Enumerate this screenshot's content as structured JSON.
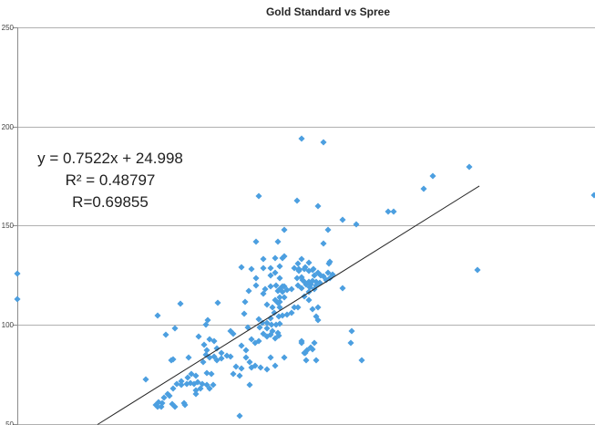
{
  "title": "Gold Standard vs Spree",
  "annotation": {
    "equation": "y = 0.7522x + 24.998",
    "r_squared": "R² = 0.48797",
    "r": "R=0.69855"
  },
  "y_axis": {
    "ticks": [
      "250",
      "200",
      "150",
      "100",
      "50"
    ],
    "tick_values": [
      250,
      200,
      150,
      100,
      50
    ]
  },
  "colors": {
    "point": "#4c9fe0",
    "trendline": "#262626",
    "gridline": "#b0b0b0",
    "axis": "#8c8c8c",
    "title_text": "#262626",
    "annotation_text": "#1f1f1f",
    "tick_text": "#3f3f3f"
  },
  "chart_data": {
    "type": "scatter",
    "title": "Gold Standard vs Spree",
    "xlabel": "",
    "ylabel": "",
    "grid": "horizontal-only",
    "xlim": [
      0,
      240
    ],
    "ylim_visible": [
      50,
      250
    ],
    "gridlines_y": [
      250,
      200,
      150,
      100,
      50
    ],
    "x_axis_note": "no x tick labels visible in screenshot; x values inferred from trendline calibration",
    "trendline": {
      "equation": "y = 0.7522x + 24.998",
      "r_squared": 0.48797,
      "r": 0.69855,
      "x1": 33.9,
      "y1": 49.9,
      "x2": 193.4,
      "y2": 170.3
    },
    "marker": "diamond",
    "points": [
      [
        0.4,
        126
      ],
      [
        0.4,
        113
      ],
      [
        119,
        194
      ],
      [
        128,
        192
      ],
      [
        189,
        179.5
      ],
      [
        174,
        175
      ],
      [
        170,
        168.5
      ],
      [
        101,
        165
      ],
      [
        117,
        162.5
      ],
      [
        126,
        160
      ],
      [
        155,
        157
      ],
      [
        157.5,
        157
      ],
      [
        136,
        153
      ],
      [
        142,
        150.5
      ],
      [
        112,
        148
      ],
      [
        100,
        142
      ],
      [
        109,
        142
      ],
      [
        103,
        133
      ],
      [
        108,
        133.5
      ],
      [
        112,
        134.5
      ],
      [
        98,
        128
      ],
      [
        103,
        128.5
      ],
      [
        106,
        128.5
      ],
      [
        110,
        129.5
      ],
      [
        116,
        128.5
      ],
      [
        118,
        127.5
      ],
      [
        94,
        129
      ],
      [
        117.5,
        131
      ],
      [
        108,
        126.5
      ],
      [
        130,
        126.5
      ],
      [
        126,
        126.5
      ],
      [
        124,
        128
      ],
      [
        120.5,
        129
      ],
      [
        122,
        131.5
      ],
      [
        119,
        133
      ],
      [
        128,
        141
      ],
      [
        130,
        148
      ],
      [
        106,
        125
      ],
      [
        100,
        123.5
      ],
      [
        110,
        123.5
      ],
      [
        118,
        128
      ],
      [
        192.5,
        127.5
      ],
      [
        111,
        133.5
      ],
      [
        111,
        119.5
      ],
      [
        112,
        119.5
      ],
      [
        109,
        117
      ],
      [
        111,
        116.5
      ],
      [
        113,
        117.5
      ],
      [
        110,
        114
      ],
      [
        112,
        114
      ],
      [
        108,
        112.5
      ],
      [
        110,
        111.5
      ],
      [
        115,
        118
      ],
      [
        117.5,
        120
      ],
      [
        119,
        124
      ],
      [
        118,
        127
      ],
      [
        120,
        128
      ],
      [
        122,
        127
      ],
      [
        123.5,
        127.5
      ],
      [
        124.5,
        125
      ],
      [
        127,
        125
      ],
      [
        120,
        121.5
      ],
      [
        121,
        120.5
      ],
      [
        123.5,
        122
      ],
      [
        125,
        120
      ],
      [
        126.5,
        121
      ],
      [
        122,
        116.5
      ],
      [
        120,
        114.5
      ],
      [
        117,
        123.5
      ],
      [
        119.5,
        122.5
      ],
      [
        122,
        121.5
      ],
      [
        123,
        120.5
      ],
      [
        125,
        121.5
      ],
      [
        122.5,
        119
      ],
      [
        124.5,
        118
      ],
      [
        119,
        118.5
      ],
      [
        128,
        124.5
      ],
      [
        129.5,
        122.5
      ],
      [
        131,
        123.5
      ],
      [
        132,
        125.5
      ],
      [
        136,
        118.5
      ],
      [
        130.5,
        131
      ],
      [
        131,
        132
      ],
      [
        97,
        117
      ],
      [
        100,
        120
      ],
      [
        103,
        115.5
      ],
      [
        104,
        118
      ],
      [
        106,
        119.5
      ],
      [
        108.5,
        120
      ],
      [
        110,
        118
      ],
      [
        59,
        104.5
      ],
      [
        68.5,
        110.5
      ],
      [
        84,
        111
      ],
      [
        80,
        102.5
      ],
      [
        79,
        100
      ],
      [
        95,
        105.5
      ],
      [
        95.5,
        111.5
      ],
      [
        104.5,
        110
      ],
      [
        107,
        109
      ],
      [
        109,
        111
      ],
      [
        110,
        109
      ],
      [
        107.5,
        106
      ],
      [
        106,
        103.5
      ],
      [
        109.5,
        104
      ],
      [
        111,
        104.5
      ],
      [
        104.5,
        101
      ],
      [
        106.5,
        100
      ],
      [
        108.5,
        100
      ],
      [
        110,
        100.5
      ],
      [
        101.5,
        98.5
      ],
      [
        102.5,
        101
      ],
      [
        101,
        103
      ],
      [
        116,
        109
      ],
      [
        117.5,
        109
      ],
      [
        115,
        106
      ],
      [
        113,
        105
      ],
      [
        123.5,
        108
      ],
      [
        126,
        109
      ],
      [
        125,
        104
      ],
      [
        126,
        102.5
      ],
      [
        122,
        112.5
      ],
      [
        140,
        97
      ],
      [
        62.5,
        95
      ],
      [
        66,
        98
      ],
      [
        76,
        94
      ],
      [
        80.5,
        92.5
      ],
      [
        82.5,
        92
      ],
      [
        78.5,
        90
      ],
      [
        79.5,
        87
      ],
      [
        83.5,
        88
      ],
      [
        85.5,
        86
      ],
      [
        89.5,
        97
      ],
      [
        90.5,
        95.5
      ],
      [
        96.5,
        98.5
      ],
      [
        98,
        92.5
      ],
      [
        99.5,
        91
      ],
      [
        101,
        92
      ],
      [
        94,
        89.5
      ],
      [
        96,
        87
      ],
      [
        103,
        95.5
      ],
      [
        104.5,
        94
      ],
      [
        106,
        95
      ],
      [
        108,
        93
      ],
      [
        109.5,
        94.5
      ],
      [
        107,
        97
      ],
      [
        104.5,
        98
      ],
      [
        109,
        96
      ],
      [
        119,
        92
      ],
      [
        124.5,
        91
      ],
      [
        123.5,
        87.5
      ],
      [
        120.5,
        86
      ],
      [
        119,
        91
      ],
      [
        123,
        88.5
      ],
      [
        121,
        82
      ],
      [
        125,
        82
      ],
      [
        144,
        82
      ],
      [
        139.5,
        91
      ],
      [
        112,
        83.5
      ],
      [
        120,
        86
      ],
      [
        121.5,
        87
      ],
      [
        65.5,
        82.5
      ],
      [
        72,
        83.5
      ],
      [
        78,
        81
      ],
      [
        80.5,
        83.5
      ],
      [
        82.5,
        84
      ],
      [
        83.5,
        82
      ],
      [
        85.5,
        83
      ],
      [
        88,
        84.5
      ],
      [
        89.5,
        84
      ],
      [
        96,
        83.5
      ],
      [
        91.5,
        79
      ],
      [
        94,
        78
      ],
      [
        98,
        78.5
      ],
      [
        99.5,
        79.5
      ],
      [
        102,
        78.5
      ],
      [
        90.5,
        75
      ],
      [
        93,
        74.5
      ],
      [
        79.5,
        75.5
      ],
      [
        81.5,
        75
      ],
      [
        73,
        75
      ],
      [
        75,
        74.5
      ],
      [
        71.5,
        73.5
      ],
      [
        69,
        71.5
      ],
      [
        67,
        70
      ],
      [
        69,
        69.5
      ],
      [
        71,
        70
      ],
      [
        72.5,
        70.5
      ],
      [
        74,
        70
      ],
      [
        75.5,
        71
      ],
      [
        77.5,
        70
      ],
      [
        79.5,
        69.5
      ],
      [
        82,
        69.5
      ],
      [
        80.5,
        68
      ],
      [
        75,
        67
      ],
      [
        77,
        68
      ],
      [
        65.5,
        68
      ],
      [
        63,
        65
      ],
      [
        61.5,
        63.5
      ],
      [
        64,
        64
      ],
      [
        54,
        72.5
      ],
      [
        59.5,
        61
      ],
      [
        61,
        60.5
      ],
      [
        58,
        59.5
      ],
      [
        59,
        58.5
      ],
      [
        60.5,
        58.5
      ],
      [
        65,
        60
      ],
      [
        66,
        58.5
      ],
      [
        70,
        60.5
      ],
      [
        97.5,
        69.5
      ],
      [
        108,
        79.5
      ],
      [
        104.5,
        77.5
      ],
      [
        97.5,
        81
      ],
      [
        93,
        54
      ],
      [
        106,
        83.5
      ],
      [
        79,
        85
      ],
      [
        75,
        65
      ],
      [
        70.5,
        59.5
      ],
      [
        64.5,
        82
      ],
      [
        241.3,
        165.5
      ]
    ]
  }
}
